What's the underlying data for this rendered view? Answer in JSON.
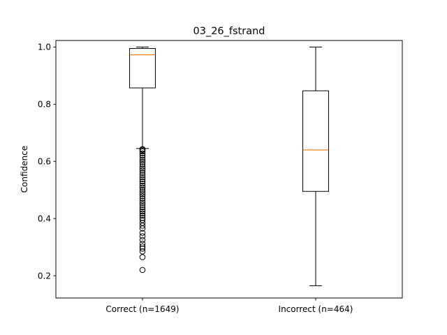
{
  "chart_data": {
    "type": "box",
    "title": "03_26_fstrand",
    "xlabel": "",
    "ylabel": "Confidence",
    "ylim": [
      0.122,
      1.023
    ],
    "yticks": [
      0.2,
      0.4,
      0.6,
      0.8,
      1.0
    ],
    "ytick_labels": [
      "0.2",
      "0.4",
      "0.6",
      "0.8",
      "1.0"
    ],
    "grid": false,
    "legend": "none",
    "categories": [
      "Correct (n=1649)",
      "Incorrect (n=464)"
    ],
    "boxes": [
      {
        "label": "Correct (n=1649)",
        "whisker_low": 0.645,
        "q1": 0.857,
        "median": 0.973,
        "q3": 0.995,
        "whisker_high": 1.0,
        "fliers": [
          0.643,
          0.64,
          0.635,
          0.628,
          0.62,
          0.612,
          0.605,
          0.598,
          0.59,
          0.582,
          0.575,
          0.568,
          0.56,
          0.552,
          0.545,
          0.538,
          0.53,
          0.522,
          0.515,
          0.508,
          0.5,
          0.492,
          0.485,
          0.478,
          0.47,
          0.462,
          0.455,
          0.448,
          0.44,
          0.432,
          0.425,
          0.418,
          0.41,
          0.402,
          0.395,
          0.385,
          0.375,
          0.365,
          0.35,
          0.338,
          0.325,
          0.312,
          0.302,
          0.295,
          0.285,
          0.265,
          0.22
        ]
      },
      {
        "label": "Incorrect (n=464)",
        "whisker_low": 0.165,
        "q1": 0.495,
        "median": 0.64,
        "q3": 0.847,
        "whisker_high": 1.0,
        "fliers": []
      }
    ],
    "colors": {
      "box": "#000000",
      "median": "#ff7f0e",
      "flier": "#000000"
    }
  }
}
